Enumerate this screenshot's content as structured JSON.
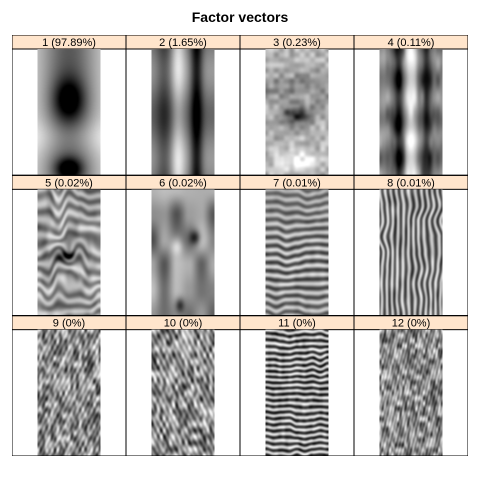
{
  "chart_data": {
    "type": "heatmap",
    "title": "Factor vectors",
    "xlabel": "",
    "ylabel": "",
    "colormap": "grayscale",
    "strip_color": "#ffe5cc",
    "layout": {
      "rows": 3,
      "cols": 4
    },
    "panels": [
      {
        "index": 1,
        "label": "1 (97.89%)",
        "share": 97.89,
        "pattern": "factor-1"
      },
      {
        "index": 2,
        "label": "2 (1.65%)",
        "share": 1.65,
        "pattern": "factor-2"
      },
      {
        "index": 3,
        "label": "3 (0.23%)",
        "share": 0.23,
        "pattern": "factor-3"
      },
      {
        "index": 4,
        "label": "4 (0.11%)",
        "share": 0.11,
        "pattern": "factor-4"
      },
      {
        "index": 5,
        "label": "5 (0.02%)",
        "share": 0.02,
        "pattern": "factor-5"
      },
      {
        "index": 6,
        "label": "6 (0.02%)",
        "share": 0.02,
        "pattern": "factor-6"
      },
      {
        "index": 7,
        "label": "7 (0.01%)",
        "share": 0.01,
        "pattern": "factor-7"
      },
      {
        "index": 8,
        "label": "8 (0.01%)",
        "share": 0.01,
        "pattern": "factor-8"
      },
      {
        "index": 9,
        "label": "9 (0%)",
        "share": 0,
        "pattern": "factor-9"
      },
      {
        "index": 10,
        "label": "10 (0%)",
        "share": 0,
        "pattern": "factor-10"
      },
      {
        "index": 11,
        "label": "11 (0%)",
        "share": 0,
        "pattern": "factor-11"
      },
      {
        "index": 12,
        "label": "12 (0%)",
        "share": 0,
        "pattern": "factor-12"
      }
    ]
  }
}
